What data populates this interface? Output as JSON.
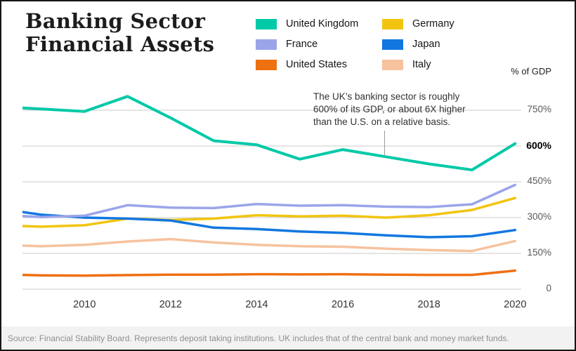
{
  "title": {
    "line1": "Banking Sector",
    "line2": "Financial Assets"
  },
  "unit_label": "% of GDP",
  "legend": [
    {
      "label": "United Kingdom",
      "color": "#00c9a7"
    },
    {
      "label": "Germany",
      "color": "#f2c40f"
    },
    {
      "label": "France",
      "color": "#9aa5e9"
    },
    {
      "label": "Japan",
      "color": "#1377e0"
    },
    {
      "label": "United States",
      "color": "#ee7011"
    },
    {
      "label": "Italy",
      "color": "#f7c29e"
    }
  ],
  "annotation": {
    "lines": [
      "The UK’s banking sector is roughly",
      "600% of its GDP, or about 6X higher",
      "than the U.S. on a relative basis."
    ]
  },
  "source": "Source: Financial Stability Board. Represents deposit taking institutions. UK includes that of the central bank and money market funds.",
  "chart_data": {
    "type": "line",
    "title": "Banking Sector Financial Assets",
    "ylabel": "% of GDP",
    "grid": "horizontal",
    "legend_position": "top",
    "ylim": [
      0,
      860
    ],
    "x": [
      2008,
      2009,
      2010,
      2011,
      2012,
      2013,
      2014,
      2015,
      2016,
      2017,
      2018,
      2019,
      2020
    ],
    "x_ticks": [
      2010,
      2012,
      2014,
      2016,
      2018,
      2020
    ],
    "y_ticks": [
      {
        "value": 0,
        "label": "0",
        "bold": false
      },
      {
        "value": 150,
        "label": "150%",
        "bold": false
      },
      {
        "value": 300,
        "label": "300%",
        "bold": false
      },
      {
        "value": 450,
        "label": "450%",
        "bold": false
      },
      {
        "value": 600,
        "label": "600%",
        "bold": true
      },
      {
        "value": 750,
        "label": "750%",
        "bold": false
      }
    ],
    "series": [
      {
        "name": "Italy",
        "color": "#f7c29e",
        "width": 3.5,
        "values": [
          186,
          180,
          186,
          200,
          210,
          196,
          186,
          180,
          178,
          170,
          164,
          160,
          202
        ]
      },
      {
        "name": "United States",
        "color": "#ee7011",
        "width": 3.5,
        "values": [
          62,
          58,
          57,
          59,
          61,
          61,
          63,
          62,
          63,
          61,
          60,
          60,
          78
        ]
      },
      {
        "name": "Germany",
        "color": "#f2c40f",
        "width": 3.5,
        "values": [
          268,
          262,
          268,
          296,
          290,
          296,
          310,
          305,
          308,
          300,
          310,
          332,
          382
        ]
      },
      {
        "name": "Japan",
        "color": "#1377e0",
        "width": 3.5,
        "values": [
          338,
          312,
          300,
          296,
          288,
          258,
          252,
          242,
          236,
          226,
          218,
          222,
          248
        ]
      },
      {
        "name": "France",
        "color": "#9aa5e9",
        "width": 3.5,
        "values": [
          312,
          302,
          308,
          352,
          342,
          340,
          357,
          350,
          352,
          346,
          344,
          356,
          437
        ]
      },
      {
        "name": "United Kingdom",
        "color": "#00c9a7",
        "width": 4,
        "values": [
          765,
          755,
          745,
          808,
          718,
          622,
          605,
          545,
          585,
          555,
          525,
          500,
          610
        ]
      }
    ]
  }
}
